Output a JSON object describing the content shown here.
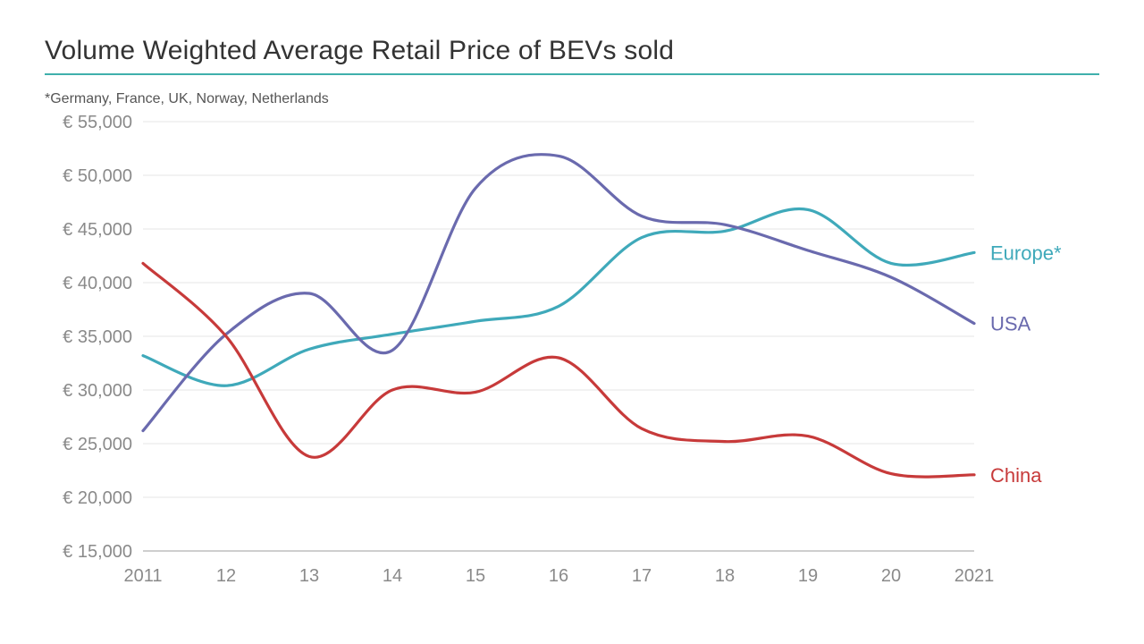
{
  "chart": {
    "type": "line",
    "title": "Volume Weighted Average Retail Price of BEVs sold",
    "footnote": "*Germany, France, UK, Norway, Netherlands",
    "title_rule_color": "#3fb0ac",
    "background_color": "#ffffff",
    "axis_label_color": "#8a8a8a",
    "grid_color": "#e6e6e6",
    "axis_line_color": "#bdbdbd",
    "title_fontsize": 30,
    "footnote_fontsize": 16,
    "tick_fontsize": 20,
    "series_label_fontsize": 22,
    "line_width": 3.2,
    "x": {
      "min": 2011,
      "max": 2021,
      "ticks": [
        2011,
        2012,
        2013,
        2014,
        2015,
        2016,
        2017,
        2018,
        2019,
        2020,
        2021
      ],
      "tick_labels": [
        "2011",
        "12",
        "13",
        "14",
        "15",
        "16",
        "17",
        "18",
        "19",
        "20",
        "2021"
      ]
    },
    "y": {
      "min": 15000,
      "max": 55000,
      "ticks": [
        15000,
        20000,
        25000,
        30000,
        35000,
        40000,
        45000,
        50000,
        55000
      ],
      "tick_labels": [
        "€ 15,000",
        "€ 20,000",
        "€ 25,000",
        "€ 30,000",
        "€ 35,000",
        "€ 40,000",
        "€ 45,000",
        "€ 50,000",
        "€ 55,000"
      ],
      "grid": true
    },
    "series": [
      {
        "name": "Europe*",
        "color": "#3fa9ba",
        "label_color": "#3fa9ba",
        "points": [
          [
            2011,
            33200
          ],
          [
            2012,
            30400
          ],
          [
            2013,
            33800
          ],
          [
            2014,
            35200
          ],
          [
            2015,
            36400
          ],
          [
            2016,
            37800
          ],
          [
            2017,
            44200
          ],
          [
            2018,
            44800
          ],
          [
            2019,
            46800
          ],
          [
            2020,
            41800
          ],
          [
            2021,
            42800
          ]
        ]
      },
      {
        "name": "USA",
        "color": "#6a6aae",
        "label_color": "#6a6aae",
        "points": [
          [
            2011,
            26200
          ],
          [
            2012,
            35200
          ],
          [
            2013,
            39000
          ],
          [
            2014,
            33700
          ],
          [
            2015,
            48800
          ],
          [
            2016,
            51800
          ],
          [
            2017,
            46200
          ],
          [
            2018,
            45400
          ],
          [
            2019,
            43000
          ],
          [
            2020,
            40500
          ],
          [
            2021,
            36200
          ]
        ]
      },
      {
        "name": "China",
        "color": "#c73a3a",
        "label_color": "#c73a3a",
        "points": [
          [
            2011,
            41800
          ],
          [
            2012,
            35000
          ],
          [
            2013,
            23800
          ],
          [
            2014,
            30000
          ],
          [
            2015,
            29800
          ],
          [
            2016,
            33000
          ],
          [
            2017,
            26400
          ],
          [
            2018,
            25200
          ],
          [
            2019,
            25700
          ],
          [
            2020,
            22200
          ],
          [
            2021,
            22100
          ]
        ]
      }
    ]
  }
}
